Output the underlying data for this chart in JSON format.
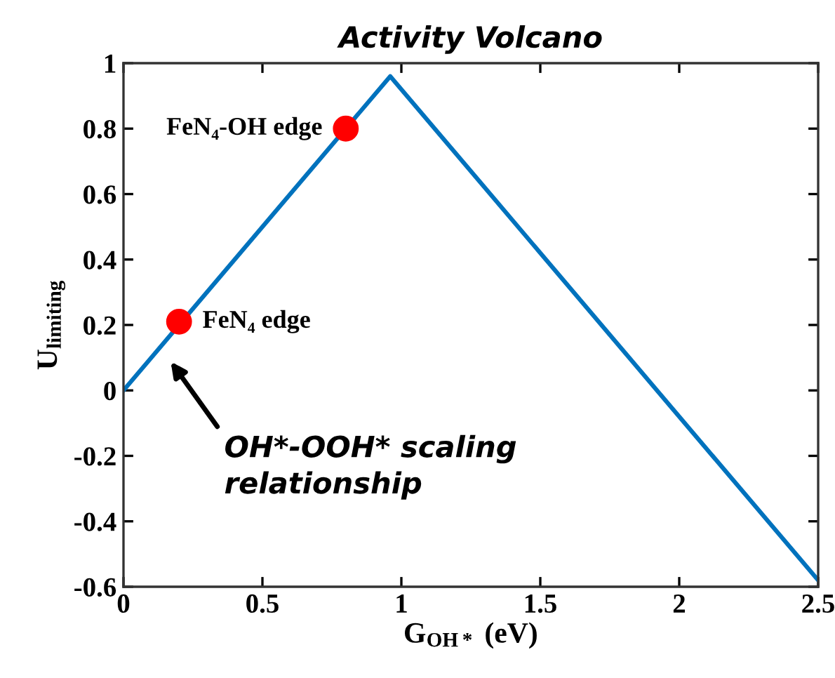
{
  "chart_data": {
    "type": "line",
    "title": "Activity Volcano",
    "xlabel": "G$_{OH*}$ (eV)",
    "ylabel": "U$_{limiting}$",
    "series": [
      {
        "color": "#0072bd",
        "x": [
          0,
          0.96,
          2.5
        ],
        "values": [
          0,
          0.96,
          -0.58
        ],
        "marker": "none"
      },
      {
        "type": "scatter",
        "color": "#ff0000",
        "x": [
          0.2,
          0.8
        ],
        "values": [
          0.21,
          0.8
        ],
        "marker": "circle"
      }
    ],
    "annotations": [
      {
        "text": "FeN₄ edge",
        "x": 0.2,
        "y": 0.21
      },
      {
        "text": "FeN₄-OH edge",
        "x": 0.8,
        "y": 0.8
      },
      "OH*-OOH* scaling\nrelationship"
    ],
    "xlim": [
      0,
      2.5
    ],
    "xticks": [
      0,
      0.5,
      1,
      1.5,
      2,
      2.5
    ],
    "ylim": [
      -0.6,
      1
    ],
    "yticks": [
      -0.6,
      -0.4,
      -0.2,
      0,
      0.2,
      0.4,
      0.6,
      0.8,
      1
    ],
    "grid": false,
    "legend": false
  }
}
